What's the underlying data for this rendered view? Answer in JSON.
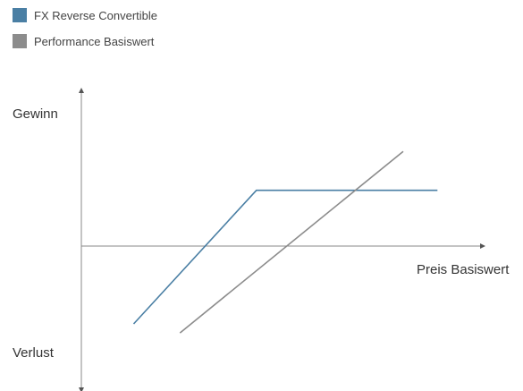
{
  "chart_data": {
    "type": "line",
    "title": "",
    "xlabel": "Preis Basiswert",
    "ylabel_top": "Gewinn",
    "ylabel_bottom": "Verlust",
    "xlim": [
      0,
      10
    ],
    "ylim": [
      -10,
      10
    ],
    "grid": false,
    "legend_position": "top-left",
    "series": [
      {
        "name": "FX Reverse Convertible",
        "color": "#4a7fa4",
        "points": [
          [
            1.3,
            -6.0
          ],
          [
            4.35,
            4.3
          ],
          [
            8.85,
            4.3
          ]
        ]
      },
      {
        "name": "Performance Basiswert",
        "color": "#8c8c8c",
        "points": [
          [
            2.45,
            -6.7
          ],
          [
            8.0,
            7.3
          ]
        ]
      }
    ]
  }
}
